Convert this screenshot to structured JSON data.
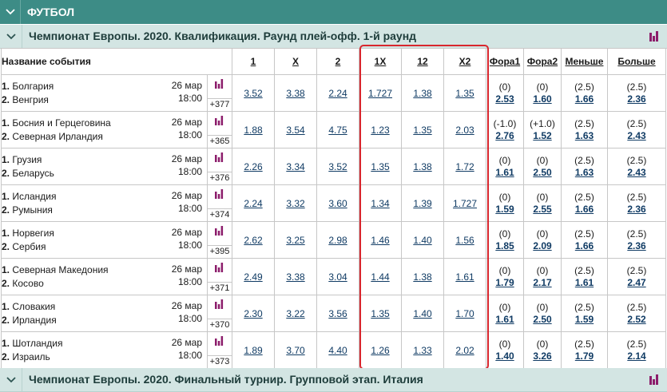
{
  "sport": {
    "title": "ФУТБОЛ"
  },
  "championships": [
    {
      "title": "Чемпионат Европы. 2020. Квалификация. Раунд плей-офф. 1-й раунд"
    },
    {
      "title": "Чемпионат Европы. 2020. Финальный турнир. Групповой этап. Италия"
    }
  ],
  "headers": {
    "event": "Название события",
    "c1": "1",
    "cx": "X",
    "c2": "2",
    "c1x": "1X",
    "c12": "12",
    "cx2": "X2",
    "fora1": "Фора1",
    "fora2": "Фора2",
    "under": "Меньше",
    "over": "Больше"
  },
  "colors": {
    "sport_bar": "#3d8c86",
    "champ_bar": "#d3e5e3",
    "highlight": "#d8262d",
    "stat_icon": "#8c1d6b"
  },
  "events": [
    {
      "team1": "Болгария",
      "team2": "Венгрия",
      "date": "26 мар",
      "time": "18:00",
      "more": "+377",
      "o1": "3.52",
      "ox": "3.38",
      "o2": "2.24",
      "o1x": "1.727",
      "o12": "1.38",
      "ox2": "1.35",
      "f1h": "(0)",
      "f1": "2.53",
      "f2h": "(0)",
      "f2": "1.60",
      "uh": "(2.5)",
      "u": "1.66",
      "oh": "(2.5)",
      "ov": "2.36"
    },
    {
      "team1": "Босния и Герцеговина",
      "team2": "Северная Ирландия",
      "date": "26 мар",
      "time": "18:00",
      "more": "+365",
      "o1": "1.88",
      "ox": "3.54",
      "o2": "4.75",
      "o1x": "1.23",
      "o12": "1.35",
      "ox2": "2.03",
      "f1h": "(-1.0)",
      "f1": "2.76",
      "f2h": "(+1.0)",
      "f2": "1.52",
      "uh": "(2.5)",
      "u": "1.63",
      "oh": "(2.5)",
      "ov": "2.43"
    },
    {
      "team1": "Грузия",
      "team2": "Беларусь",
      "date": "26 мар",
      "time": "18:00",
      "more": "+376",
      "o1": "2.26",
      "ox": "3.34",
      "o2": "3.52",
      "o1x": "1.35",
      "o12": "1.38",
      "ox2": "1.72",
      "f1h": "(0)",
      "f1": "1.61",
      "f2h": "(0)",
      "f2": "2.50",
      "uh": "(2.5)",
      "u": "1.63",
      "oh": "(2.5)",
      "ov": "2.43"
    },
    {
      "team1": "Исландия",
      "team2": "Румыния",
      "date": "26 мар",
      "time": "18:00",
      "more": "+374",
      "o1": "2.24",
      "ox": "3.32",
      "o2": "3.60",
      "o1x": "1.34",
      "o12": "1.39",
      "ox2": "1.727",
      "f1h": "(0)",
      "f1": "1.59",
      "f2h": "(0)",
      "f2": "2.55",
      "uh": "(2.5)",
      "u": "1.66",
      "oh": "(2.5)",
      "ov": "2.36"
    },
    {
      "team1": "Норвегия",
      "team2": "Сербия",
      "date": "26 мар",
      "time": "18:00",
      "more": "+395",
      "o1": "2.62",
      "ox": "3.25",
      "o2": "2.98",
      "o1x": "1.46",
      "o12": "1.40",
      "ox2": "1.56",
      "f1h": "(0)",
      "f1": "1.85",
      "f2h": "(0)",
      "f2": "2.09",
      "uh": "(2.5)",
      "u": "1.66",
      "oh": "(2.5)",
      "ov": "2.36"
    },
    {
      "team1": "Северная Македония",
      "team2": "Косово",
      "date": "26 мар",
      "time": "18:00",
      "more": "+371",
      "o1": "2.49",
      "ox": "3.38",
      "o2": "3.04",
      "o1x": "1.44",
      "o12": "1.38",
      "ox2": "1.61",
      "f1h": "(0)",
      "f1": "1.79",
      "f2h": "(0)",
      "f2": "2.17",
      "uh": "(2.5)",
      "u": "1.61",
      "oh": "(2.5)",
      "ov": "2.47"
    },
    {
      "team1": "Словакия",
      "team2": "Ирландия",
      "date": "26 мар",
      "time": "18:00",
      "more": "+370",
      "o1": "2.30",
      "ox": "3.22",
      "o2": "3.56",
      "o1x": "1.35",
      "o12": "1.40",
      "ox2": "1.70",
      "f1h": "(0)",
      "f1": "1.61",
      "f2h": "(0)",
      "f2": "2.50",
      "uh": "(2.5)",
      "u": "1.59",
      "oh": "(2.5)",
      "ov": "2.52"
    },
    {
      "team1": "Шотландия",
      "team2": "Израиль",
      "date": "26 мар",
      "time": "18:00",
      "more": "+373",
      "o1": "1.89",
      "ox": "3.70",
      "o2": "4.40",
      "o1x": "1.26",
      "o12": "1.33",
      "ox2": "2.02",
      "f1h": "(0)",
      "f1": "1.40",
      "f2h": "(0)",
      "f2": "3.26",
      "uh": "(2.5)",
      "u": "1.79",
      "oh": "(2.5)",
      "ov": "2.14"
    }
  ]
}
